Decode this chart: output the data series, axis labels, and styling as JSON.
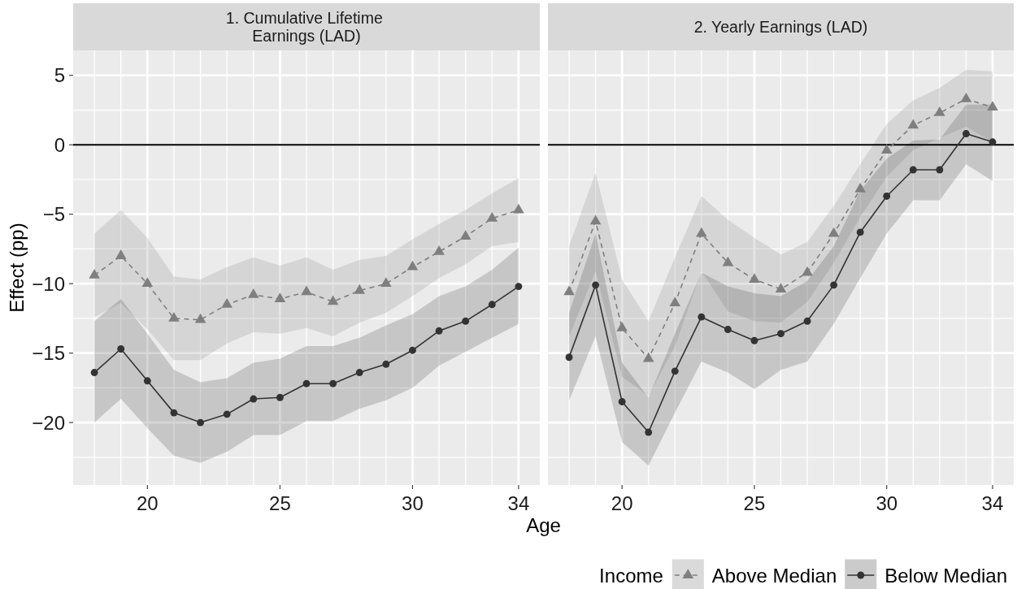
{
  "chart_data": [
    {
      "type": "line",
      "title": "1. Cumulative Lifetime\nEarnings (LAD)",
      "xlabel": "Age",
      "ylabel": "Effect (pp)",
      "x": [
        18,
        19,
        20,
        21,
        22,
        23,
        24,
        25,
        26,
        27,
        28,
        29,
        30,
        31,
        32,
        33,
        34
      ],
      "series": [
        {
          "color": "#7f7f7f",
          "marker": "triangle",
          "line_style": "dashed",
          "values": [
            -9.4,
            -8.0,
            -10.0,
            -12.5,
            -12.6,
            -11.5,
            -10.8,
            -11.1,
            -10.6,
            -11.3,
            -10.5,
            -10.0,
            -8.8,
            -7.7,
            -6.6,
            -5.3,
            -4.7
          ],
          "lower": [
            -12.4,
            -11.4,
            -13.3,
            -15.5,
            -15.5,
            -14.3,
            -13.5,
            -13.6,
            -13.2,
            -13.8,
            -12.8,
            -12.1,
            -10.9,
            -9.6,
            -8.6,
            -7.3,
            -7.0
          ],
          "upper": [
            -6.4,
            -4.7,
            -6.7,
            -9.5,
            -9.7,
            -8.8,
            -8.1,
            -8.7,
            -8.1,
            -9.0,
            -8.3,
            -8.0,
            -6.8,
            -5.7,
            -4.7,
            -3.5,
            -2.4
          ]
        },
        {
          "color": "#333333",
          "marker": "circle",
          "line_style": "solid",
          "values": [
            -16.4,
            -14.7,
            -17.0,
            -19.3,
            -20.0,
            -19.4,
            -18.3,
            -18.2,
            -17.2,
            -17.2,
            -16.4,
            -15.8,
            -14.8,
            -13.4,
            -12.7,
            -11.5,
            -10.2
          ],
          "lower": [
            -20.0,
            -18.3,
            -20.4,
            -22.4,
            -22.9,
            -22.1,
            -20.9,
            -20.9,
            -19.9,
            -19.9,
            -19.0,
            -18.4,
            -17.5,
            -15.9,
            -14.9,
            -13.9,
            -12.9
          ],
          "upper": [
            -12.7,
            -11.1,
            -13.6,
            -16.2,
            -17.1,
            -16.8,
            -15.7,
            -15.4,
            -14.5,
            -14.5,
            -13.9,
            -13.0,
            -12.2,
            -10.9,
            -10.2,
            -9.0,
            -7.4
          ]
        }
      ],
      "xlim": [
        17.2,
        34.8
      ],
      "ylim": [
        -24.5,
        6.8
      ],
      "xticks": [
        20,
        25,
        30,
        34
      ],
      "yticks": [
        {
          "value": -20,
          "label": "−20"
        },
        {
          "value": -15,
          "label": "−15"
        },
        {
          "value": -10,
          "label": "−10"
        },
        {
          "value": -5,
          "label": "−5"
        },
        0,
        5
      ],
      "grid": true,
      "ref_lines": [
        {
          "axis": "y",
          "value": 0,
          "color": "#000000"
        }
      ]
    },
    {
      "type": "line",
      "title": "2. Yearly Earnings (LAD)",
      "legend_title": "Income",
      "x": [
        18,
        19,
        20,
        21,
        22,
        23,
        24,
        25,
        26,
        27,
        28,
        29,
        30,
        31,
        32,
        33,
        34
      ],
      "series": [
        {
          "name": "Above Median",
          "color": "#7f7f7f",
          "marker": "triangle",
          "line_style": "dashed",
          "values": [
            -10.6,
            -5.5,
            -13.2,
            -15.4,
            -11.4,
            -6.4,
            -8.5,
            -9.7,
            -10.4,
            -9.2,
            -6.4,
            -3.2,
            -0.4,
            1.4,
            2.3,
            3.3,
            2.7
          ],
          "lower": [
            -13.8,
            -9.1,
            -16.7,
            -18.1,
            -14.5,
            -9.1,
            -12.0,
            -12.7,
            -12.8,
            -11.3,
            -8.5,
            -5.2,
            -2.3,
            -0.4,
            0.5,
            1.3,
            0.2
          ],
          "upper": [
            -7.3,
            -2.0,
            -9.7,
            -12.7,
            -8.1,
            -3.7,
            -5.4,
            -6.7,
            -7.9,
            -7.0,
            -4.4,
            -1.4,
            1.5,
            3.2,
            4.1,
            5.4,
            5.3
          ]
        },
        {
          "name": "Below Median",
          "color": "#333333",
          "marker": "circle",
          "line_style": "solid",
          "values": [
            -15.3,
            -10.1,
            -18.5,
            -20.7,
            -16.3,
            -12.4,
            -13.3,
            -14.1,
            -13.6,
            -12.7,
            -10.1,
            -6.3,
            -3.7,
            -1.8,
            -1.8,
            0.8,
            0.2
          ],
          "lower": [
            -18.4,
            -13.8,
            -21.4,
            -23.1,
            -19.3,
            -15.6,
            -16.4,
            -17.6,
            -16.2,
            -15.6,
            -12.9,
            -9.6,
            -6.4,
            -4.0,
            -4.0,
            -1.4,
            -2.6
          ],
          "upper": [
            -12.1,
            -6.4,
            -15.7,
            -18.2,
            -13.6,
            -9.2,
            -10.2,
            -10.7,
            -10.9,
            -9.8,
            -7.3,
            -3.3,
            -1.0,
            0.3,
            0.4,
            2.9,
            2.9
          ]
        }
      ],
      "xlim": [
        17.2,
        34.8
      ],
      "ylim": [
        -24.5,
        6.8
      ],
      "xticks": [
        20,
        25,
        30,
        34
      ],
      "yticks": [
        -20,
        -15,
        -10,
        -5,
        0,
        5
      ],
      "grid": true,
      "tick_labels": "x",
      "legend": "bottom right",
      "ref_lines": [
        {
          "axis": "y",
          "value": 0,
          "color": "#000000"
        }
      ]
    }
  ]
}
